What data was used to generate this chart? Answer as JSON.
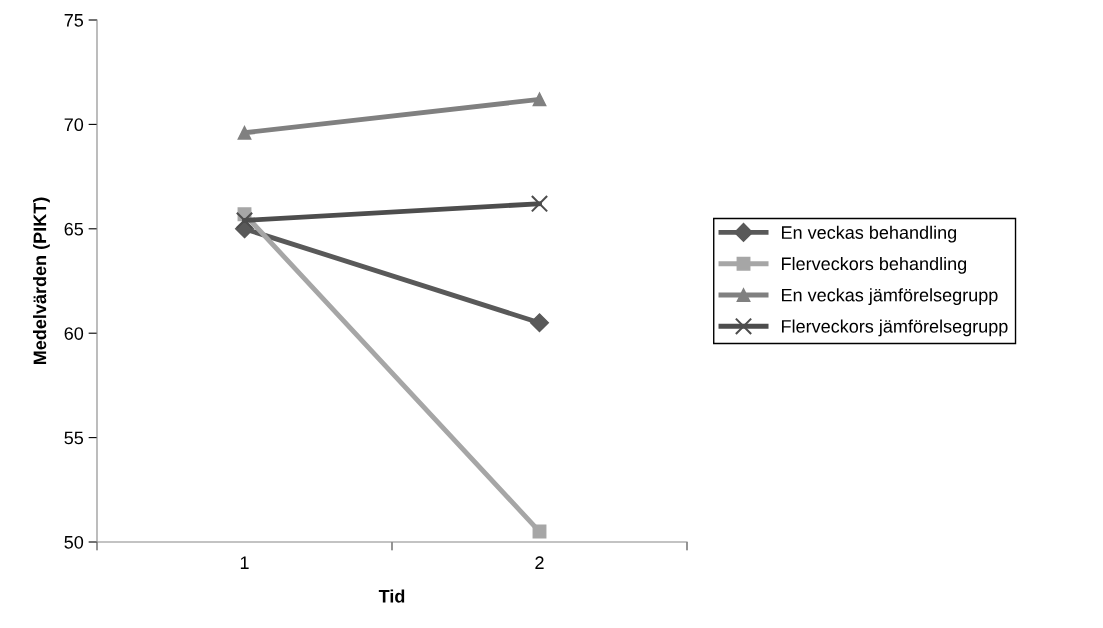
{
  "chart_data": {
    "type": "line",
    "xlabel": "Tid",
    "ylabel": "Medelvärden (PIKT)",
    "categories": [
      "1",
      "2"
    ],
    "series": [
      {
        "name": "En veckas behandling",
        "color": "#595959",
        "marker": "diamond",
        "values": [
          65.0,
          60.5
        ]
      },
      {
        "name": "Flerveckors behandling",
        "color": "#a6a6a6",
        "marker": "square",
        "values": [
          65.7,
          50.5
        ]
      },
      {
        "name": "En veckas jämförelsegrupp",
        "color": "#808080",
        "marker": "triangle",
        "values": [
          69.6,
          71.2
        ]
      },
      {
        "name": "Flerveckors jämförelsegrupp",
        "color": "#4d4d4d",
        "marker": "cross",
        "values": [
          65.4,
          66.2
        ]
      }
    ],
    "ylim": [
      50,
      75
    ],
    "yticks": [
      50,
      55,
      60,
      65,
      70,
      75
    ],
    "grid": false,
    "legend": "right",
    "line_style": "solid"
  }
}
